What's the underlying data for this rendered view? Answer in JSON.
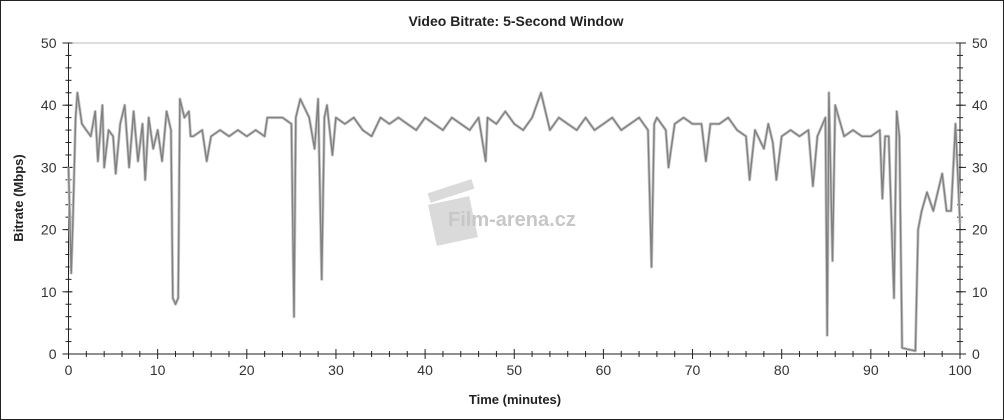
{
  "chart_data": {
    "type": "line",
    "title": "Video Bitrate: 5-Second Window",
    "xlabel": "Time (minutes)",
    "ylabel": "Bitrate (Mbps)",
    "xlim": [
      0,
      100
    ],
    "ylim": [
      0,
      50
    ],
    "x_ticks": [
      "0",
      "10",
      "20",
      "30",
      "40",
      "50",
      "60",
      "70",
      "80",
      "90",
      "100"
    ],
    "y_ticks": [
      "0",
      "10",
      "20",
      "30",
      "40",
      "50"
    ],
    "y_ticks_right": [
      "0",
      "10",
      "20",
      "30",
      "40",
      "50"
    ],
    "grid": false,
    "series_color": "#808080",
    "watermark": "Film-arena.cz",
    "series": [
      {
        "x": [
          0,
          0.3,
          0.5,
          0.8,
          1,
          1.5,
          2,
          2.5,
          3,
          3.3,
          3.8,
          4,
          4.5,
          5,
          5.3,
          5.8,
          6.3,
          6.8,
          7.3,
          7.8,
          8.3,
          8.6,
          9,
          9.5,
          10,
          10.5,
          11,
          11.5,
          11.7,
          12,
          12.3,
          12.5,
          13,
          13.5,
          13.7,
          14,
          15,
          15.5,
          16,
          17,
          18,
          19,
          20,
          21,
          22,
          22.3,
          23,
          24,
          25,
          25.3,
          25.5,
          26,
          27,
          27.6,
          28,
          28.4,
          28.7,
          29,
          29.6,
          30,
          31,
          32,
          33,
          34,
          35,
          36,
          37,
          38,
          39,
          40,
          41,
          42,
          43,
          44,
          45,
          46,
          46.8,
          47,
          48,
          49,
          50,
          51,
          52,
          53,
          54,
          55,
          56,
          57,
          58,
          59,
          60,
          61,
          62,
          63,
          64,
          65,
          65.4,
          65.7,
          66,
          67,
          67.3,
          68,
          69,
          70,
          71,
          71.5,
          72,
          73,
          74,
          75,
          76,
          76.4,
          77,
          78,
          78.5,
          79,
          79.4,
          80,
          81,
          82,
          83,
          83.5,
          84,
          84.9,
          85.1,
          85.3,
          85.7,
          86,
          87,
          88,
          89,
          90,
          91,
          91.3,
          91.6,
          92,
          92.6,
          92.9,
          93.2,
          93.5,
          94,
          95,
          95.3,
          95.7,
          96.3,
          97,
          97.5,
          98,
          98.5,
          99,
          99.5,
          100
        ],
        "y": [
          30,
          13,
          22,
          38,
          42,
          37,
          36,
          35,
          39,
          31,
          40,
          30,
          36,
          35,
          29,
          37,
          40,
          30,
          39,
          31,
          37,
          28,
          38,
          33,
          36,
          31,
          39,
          36,
          9,
          8,
          9,
          41,
          38,
          39,
          35,
          35,
          36,
          31,
          35,
          36,
          35,
          36,
          35,
          36,
          35,
          38,
          38,
          38,
          37,
          6,
          38,
          41,
          38,
          33,
          41,
          12,
          38,
          40,
          32,
          38,
          37,
          38,
          36,
          35,
          38,
          37,
          38,
          37,
          36,
          38,
          37,
          36,
          38,
          37,
          36,
          38,
          31,
          38,
          37,
          39,
          37,
          36,
          38,
          42,
          36,
          38,
          37,
          36,
          38,
          36,
          37,
          38,
          36,
          37,
          38,
          36,
          14,
          37,
          38,
          36,
          30,
          37,
          38,
          37,
          37,
          31,
          37,
          37,
          38,
          36,
          35,
          28,
          36,
          33,
          37,
          34,
          28,
          35,
          36,
          35,
          36,
          27,
          35,
          38,
          3,
          42,
          15,
          40,
          35,
          36,
          35,
          35,
          36,
          25,
          35,
          35,
          9,
          39,
          35,
          1,
          0.8,
          0.5,
          20,
          23,
          26,
          23,
          26,
          29,
          23,
          23,
          37,
          21
        ]
      }
    ]
  }
}
